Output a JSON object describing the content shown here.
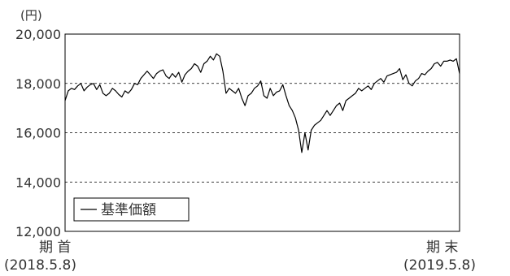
{
  "chart_data": {
    "type": "line",
    "title": "",
    "ylabel": "(円)",
    "xlabel": "",
    "ylim": [
      12000,
      20000
    ],
    "yticks": [
      12000,
      14000,
      16000,
      18000,
      20000
    ],
    "ytick_labels": [
      "12,000",
      "14,000",
      "16,000",
      "18,000",
      "20,000"
    ],
    "grid": {
      "y_dashed_at": [
        14000,
        16000,
        18000
      ]
    },
    "legend": {
      "position": "bottom-left",
      "entries": [
        "基準価額"
      ]
    },
    "x_start": {
      "label": "期 首",
      "date": "(2018.5.8)"
    },
    "x_end": {
      "label": "期 末",
      "date": "(2019.5.8)"
    },
    "series": [
      {
        "name": "基準価額",
        "color": "#000000",
        "x": [
          0,
          2,
          4,
          6,
          8,
          10,
          12,
          14,
          16,
          18,
          20,
          22,
          24,
          26,
          28,
          30,
          32,
          34,
          36,
          38,
          40,
          42,
          44,
          46,
          48,
          50,
          52,
          54,
          56,
          58,
          60,
          62,
          64,
          66,
          68,
          70,
          72,
          74,
          76,
          78,
          80,
          82,
          84,
          86,
          88,
          90,
          92,
          94,
          96,
          98,
          100,
          102,
          104,
          106,
          108,
          110,
          112,
          114,
          116,
          118,
          120,
          122,
          124,
          126,
          128,
          130,
          132,
          134,
          136,
          138,
          140,
          142,
          144,
          146,
          148,
          150,
          152,
          154,
          156,
          158,
          160,
          162,
          164,
          166,
          168,
          170,
          172,
          174,
          176,
          178,
          180,
          182,
          184,
          186,
          188,
          190,
          192,
          194,
          196,
          198,
          200,
          202,
          204,
          206,
          208,
          210,
          212,
          214,
          216,
          218,
          220,
          222,
          224,
          226,
          228,
          230,
          232,
          234,
          236,
          238,
          240,
          242,
          244,
          246,
          248,
          250
        ],
        "y": [
          17300,
          17700,
          17800,
          17750,
          17900,
          18000,
          17700,
          17850,
          17950,
          18000,
          17750,
          17950,
          17600,
          17500,
          17600,
          17800,
          17700,
          17550,
          17450,
          17700,
          17600,
          17750,
          18000,
          17950,
          18200,
          18350,
          18500,
          18350,
          18200,
          18400,
          18500,
          18550,
          18300,
          18200,
          18400,
          18250,
          18450,
          18050,
          18350,
          18500,
          18600,
          18800,
          18700,
          18450,
          18800,
          18900,
          19100,
          18950,
          19200,
          19100,
          18500,
          17600,
          17800,
          17700,
          17600,
          17800,
          17400,
          17100,
          17500,
          17600,
          17800,
          17900,
          18100,
          17500,
          17400,
          17800,
          17500,
          17650,
          17700,
          17950,
          17500,
          17100,
          16900,
          16600,
          16100,
          15200,
          16000,
          15300,
          16100,
          16300,
          16400,
          16500,
          16700,
          16900,
          16700,
          16900,
          17100,
          17200,
          16900,
          17300,
          17400,
          17500,
          17600,
          17800,
          17700,
          17800,
          17900,
          17750,
          18000,
          18100,
          18200,
          18050,
          18300,
          18350,
          18400,
          18450,
          18600,
          18150,
          18350,
          18000,
          17900,
          18100,
          18200,
          18400,
          18350,
          18500,
          18600,
          18800,
          18850,
          18700,
          18900,
          18900,
          18950,
          18900,
          19000,
          18400
        ]
      }
    ]
  }
}
